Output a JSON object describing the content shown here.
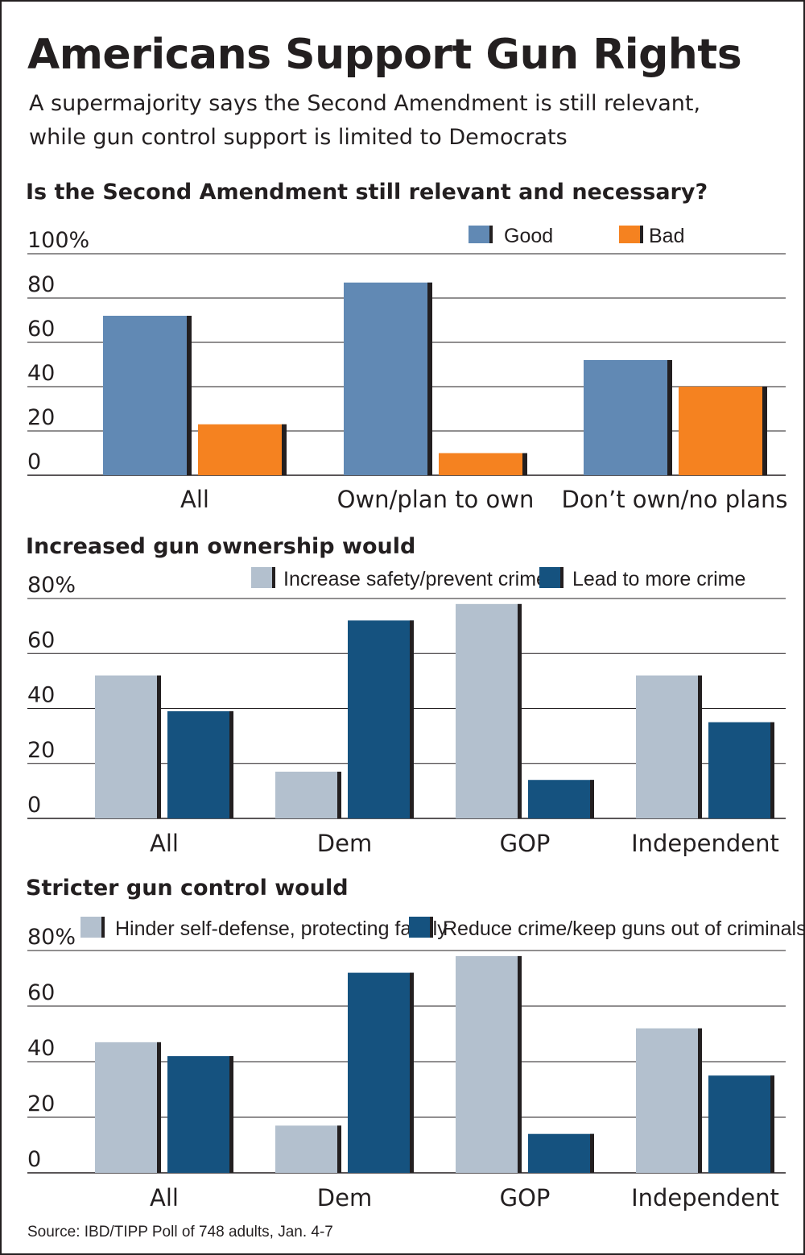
{
  "title": "Americans Support Gun Rights",
  "subtitle_lines": [
    "A supermajority says the Second Amendment is still relevant,",
    "while gun control support is limited to Democrats"
  ],
  "source": "Source: IBD/TIPP Poll of 748 adults, Jan. 4-7",
  "chart_data": [
    {
      "type": "bar",
      "title": "Is the Second Amendment still relevant and necessary?",
      "categories": [
        "All",
        "Own/plan to own",
        "Don’t own/no plans"
      ],
      "series": [
        {
          "name": "Good",
          "color": "#6189b4",
          "values": [
            72,
            87,
            52
          ]
        },
        {
          "name": "Bad",
          "color": "#f58220",
          "values": [
            23,
            10,
            40
          ]
        }
      ],
      "yticks": [
        "0",
        "20",
        "40",
        "60",
        "80",
        "100%"
      ],
      "ylim": [
        0,
        100
      ],
      "xlabel": "",
      "ylabel": "",
      "legend": "top-right"
    },
    {
      "type": "bar",
      "title": "Increased gun ownership would",
      "categories": [
        "All",
        "Dem",
        "GOP",
        "Independent"
      ],
      "series": [
        {
          "name": "Increase safety/prevent crime",
          "color": "#b3c0ce",
          "values": [
            52,
            17,
            78,
            52
          ]
        },
        {
          "name": "Lead to more crime",
          "color": "#15527f",
          "values": [
            39,
            72,
            14,
            35
          ]
        }
      ],
      "yticks": [
        "0",
        "20",
        "40",
        "60",
        "80%"
      ],
      "ylim": [
        0,
        80
      ],
      "xlabel": "",
      "ylabel": "",
      "legend": "top"
    },
    {
      "type": "bar",
      "title": "Stricter gun control would",
      "categories": [
        "All",
        "Dem",
        "GOP",
        "Independent"
      ],
      "series": [
        {
          "name": "Hinder self-defense, protecting family",
          "color": "#b3c0ce",
          "values": [
            47,
            17,
            78,
            52
          ]
        },
        {
          "name": "Reduce crime/keep guns out of criminals’ hands",
          "color": "#15527f",
          "values": [
            42,
            72,
            14,
            35
          ]
        }
      ],
      "yticks": [
        "0",
        "20",
        "40",
        "60",
        "80%"
      ],
      "ylim": [
        0,
        80
      ],
      "xlabel": "",
      "ylabel": "",
      "legend": "top"
    }
  ]
}
